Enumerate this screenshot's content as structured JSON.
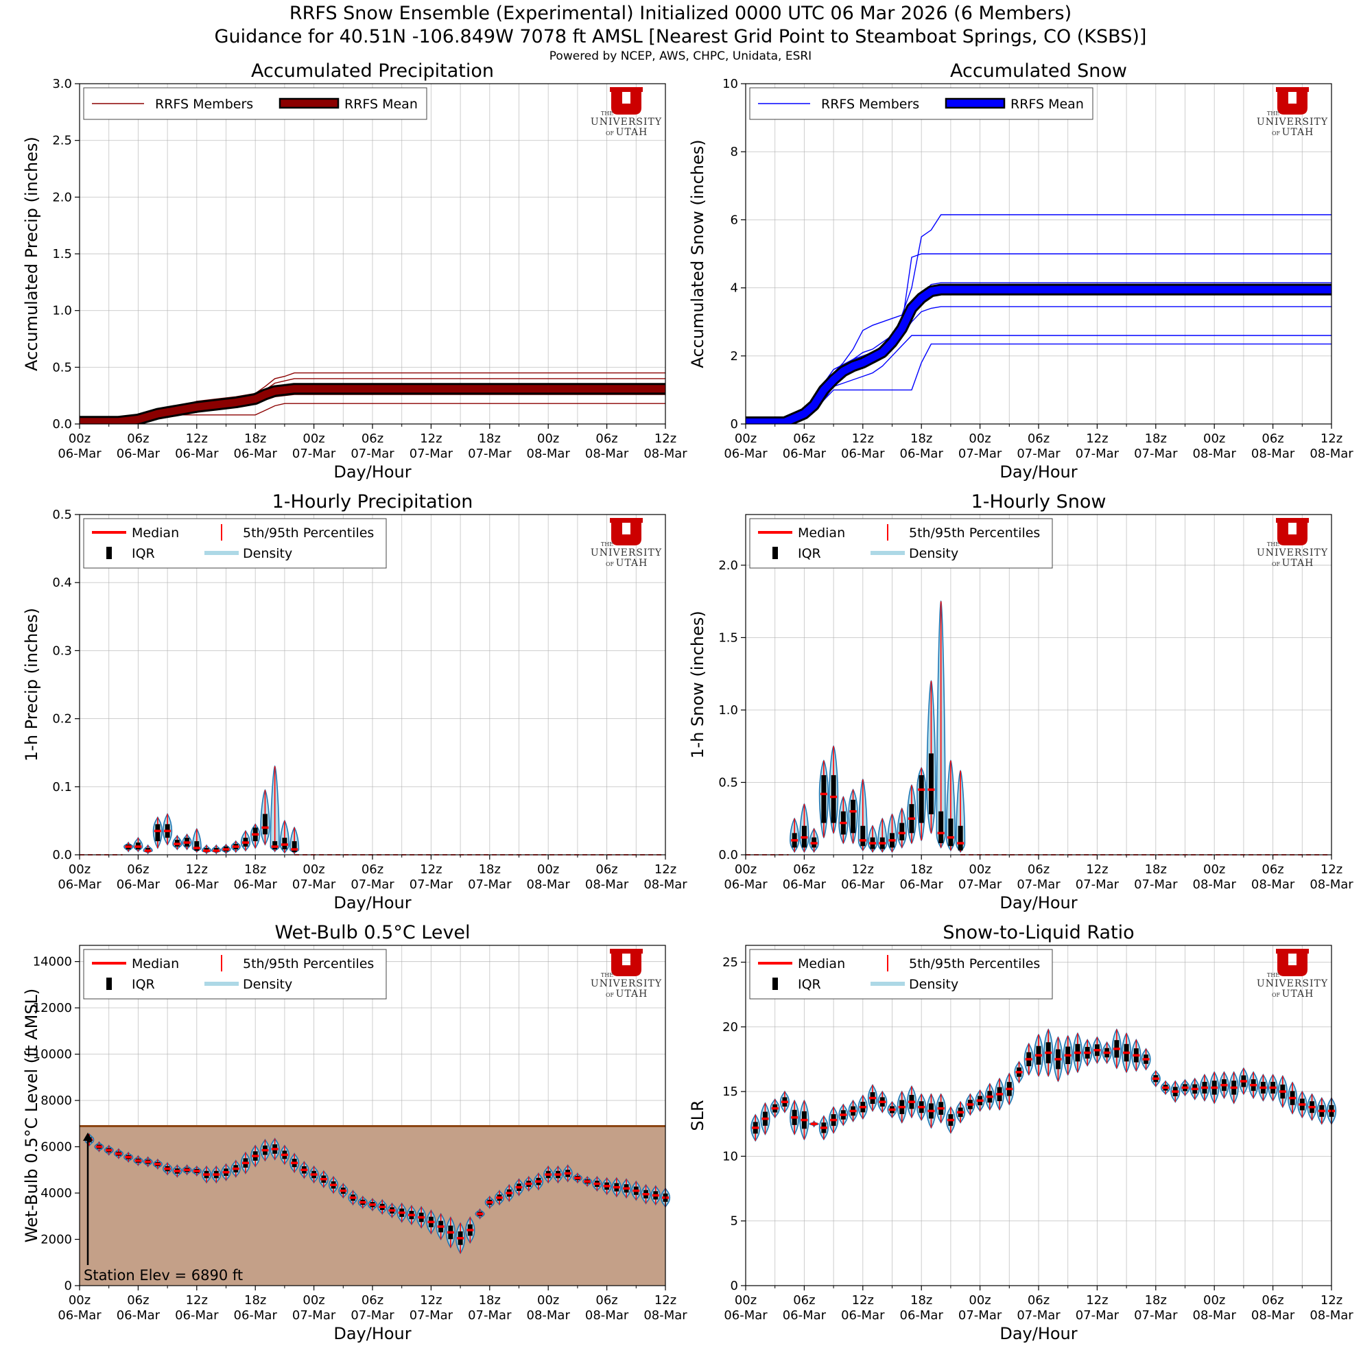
{
  "header": {
    "title_line1": "RRFS Snow Ensemble (Experimental) Initialized 0000 UTC 06 Mar 2026 (6 Members)",
    "title_line2": "Guidance for 40.51N -106.849W 7078 ft AMSL [Nearest Grid Point to Steamboat Springs, CO (KSBS)]",
    "credits": "Powered by NCEP, AWS, CHPC, Unidata, ESRI"
  },
  "logo": {
    "the": "THE",
    "line1": "UNIVERSITY",
    "of": "OF",
    "line2": "UTAH"
  },
  "x_axis": {
    "label": "Day/Hour",
    "range_hours": [
      0,
      60
    ],
    "tick_hours": [
      0,
      6,
      12,
      18,
      24,
      30,
      36,
      42,
      48,
      54,
      60
    ],
    "tick_labels_top": [
      "00z",
      "06z",
      "12z",
      "18z",
      "00z",
      "06z",
      "12z",
      "18z",
      "00z",
      "06z",
      "12z"
    ],
    "tick_labels_bottom": [
      "06-Mar",
      "06-Mar",
      "06-Mar",
      "06-Mar",
      "07-Mar",
      "07-Mar",
      "07-Mar",
      "07-Mar",
      "08-Mar",
      "08-Mar",
      "08-Mar"
    ]
  },
  "colors": {
    "precip_member": "#8b0000",
    "precip_mean": "#8b0000",
    "snow_member": "#0000ff",
    "snow_mean": "#0000ff",
    "median": "#ff0000",
    "percentile": "#ff0000",
    "iqr": "#000000",
    "density_fill": "#add8e6",
    "density_edge": "#1f77b4",
    "ground": "#c4a088",
    "ground_line": "#8b4513",
    "grid": "#b0b0b0"
  },
  "legends": {
    "members_precip": "RRFS Members",
    "mean_precip": "RRFS Mean",
    "members_snow": "RRFS Members",
    "mean_snow": "RRFS Mean",
    "median": "Median",
    "percentiles": "5th/95th Percentiles",
    "iqr": "IQR",
    "density": "Density"
  },
  "chart_data": [
    {
      "id": "accum_precip",
      "type": "line",
      "title": "Accumulated Precipitation",
      "xlabel": "Day/Hour",
      "ylabel": "Accumulated Precip (inches)",
      "ylim": [
        0,
        3.0
      ],
      "yticks": [
        0,
        0.5,
        1.0,
        1.5,
        2.0,
        2.5,
        3.0
      ],
      "ytick_labels": [
        "0.0",
        "0.5",
        "1.0",
        "1.5",
        "2.0",
        "2.5",
        "3.0"
      ],
      "x": [
        0,
        4,
        6,
        8,
        10,
        12,
        14,
        16,
        18,
        19,
        20,
        21,
        22,
        60
      ],
      "members": [
        [
          0.02,
          0.02,
          0.04,
          0.1,
          0.15,
          0.2,
          0.22,
          0.24,
          0.27,
          0.33,
          0.4,
          0.42,
          0.45,
          0.45
        ],
        [
          0.02,
          0.02,
          0.04,
          0.09,
          0.13,
          0.17,
          0.2,
          0.22,
          0.25,
          0.3,
          0.36,
          0.38,
          0.4,
          0.4
        ],
        [
          0.02,
          0.02,
          0.04,
          0.09,
          0.12,
          0.16,
          0.18,
          0.2,
          0.23,
          0.27,
          0.31,
          0.32,
          0.34,
          0.34
        ],
        [
          0.02,
          0.02,
          0.03,
          0.08,
          0.11,
          0.14,
          0.16,
          0.18,
          0.21,
          0.24,
          0.27,
          0.28,
          0.29,
          0.29
        ],
        [
          0.02,
          0.02,
          0.03,
          0.07,
          0.1,
          0.12,
          0.14,
          0.16,
          0.18,
          0.21,
          0.24,
          0.25,
          0.26,
          0.26
        ],
        [
          0.0,
          0.0,
          0.02,
          0.06,
          0.08,
          0.08,
          0.08,
          0.08,
          0.08,
          0.12,
          0.16,
          0.18,
          0.18,
          0.18
        ]
      ],
      "mean": [
        0.02,
        0.02,
        0.04,
        0.09,
        0.12,
        0.15,
        0.17,
        0.19,
        0.22,
        0.26,
        0.29,
        0.3,
        0.31,
        0.31
      ]
    },
    {
      "id": "accum_snow",
      "type": "line",
      "title": "Accumulated Snow",
      "xlabel": "Day/Hour",
      "ylabel": "Accumulated Snow (inches)",
      "ylim": [
        0,
        10
      ],
      "yticks": [
        0,
        2,
        4,
        6,
        8,
        10
      ],
      "ytick_labels": [
        "0",
        "2",
        "4",
        "6",
        "8",
        "10"
      ],
      "x": [
        0,
        4,
        6,
        7,
        8,
        9,
        10,
        11,
        12,
        13,
        14,
        15,
        16,
        17,
        18,
        19,
        20,
        21,
        22,
        60
      ],
      "members": [
        [
          0.05,
          0.05,
          0.35,
          0.6,
          1.0,
          1.5,
          1.8,
          2.2,
          2.75,
          2.9,
          3.0,
          3.1,
          3.2,
          4.0,
          5.5,
          5.7,
          6.15,
          6.15,
          6.15,
          6.15
        ],
        [
          0.05,
          0.05,
          0.3,
          0.5,
          0.9,
          1.4,
          1.7,
          1.9,
          2.1,
          2.2,
          2.4,
          2.6,
          2.9,
          4.9,
          5.0,
          5.0,
          5.0,
          5.0,
          5.0,
          5.0
        ],
        [
          0.05,
          0.05,
          0.4,
          0.7,
          1.2,
          1.6,
          1.75,
          1.9,
          2.0,
          2.1,
          2.3,
          2.5,
          2.8,
          3.3,
          3.8,
          4.1,
          4.15,
          4.15,
          4.15,
          4.15
        ],
        [
          0.05,
          0.05,
          0.3,
          0.5,
          0.9,
          1.3,
          1.5,
          1.6,
          1.7,
          1.8,
          2.0,
          2.3,
          2.6,
          3.0,
          3.3,
          3.4,
          3.45,
          3.45,
          3.45,
          3.45
        ],
        [
          0.05,
          0.05,
          0.2,
          0.4,
          0.7,
          1.0,
          1.0,
          1.0,
          1.0,
          1.0,
          1.0,
          1.0,
          1.0,
          1.0,
          1.8,
          2.35,
          2.35,
          2.35,
          2.35,
          2.35
        ],
        [
          0.05,
          0.05,
          0.2,
          0.4,
          0.7,
          1.1,
          1.2,
          1.3,
          1.4,
          1.5,
          1.7,
          2.0,
          2.3,
          2.6,
          2.6,
          2.6,
          2.6,
          2.6,
          2.6,
          2.6
        ]
      ],
      "mean": [
        0.05,
        0.05,
        0.3,
        0.55,
        1.0,
        1.3,
        1.55,
        1.7,
        1.8,
        1.95,
        2.1,
        2.4,
        2.8,
        3.4,
        3.7,
        3.9,
        3.95,
        3.95,
        3.95,
        3.95
      ]
    },
    {
      "id": "hourly_precip",
      "type": "violin",
      "title": "1-Hourly Precipitation",
      "xlabel": "Day/Hour",
      "ylabel": "1-h Precip (inches)",
      "ylim": [
        0,
        0.5
      ],
      "yticks": [
        0,
        0.1,
        0.2,
        0.3,
        0.4,
        0.5
      ],
      "ytick_labels": [
        "0.0",
        "0.1",
        "0.2",
        "0.3",
        "0.4",
        "0.5"
      ],
      "dashed_zero_from": 22,
      "hours": [
        5,
        6,
        7,
        8,
        9,
        10,
        11,
        12,
        13,
        14,
        15,
        16,
        17,
        18,
        19,
        20,
        21,
        22
      ],
      "p5": [
        0.005,
        0.005,
        0.002,
        0.01,
        0.015,
        0.008,
        0.008,
        0.004,
        0.002,
        0.002,
        0.002,
        0.004,
        0.006,
        0.01,
        0.015,
        0.005,
        0.003,
        0.002
      ],
      "q1": [
        0.008,
        0.008,
        0.004,
        0.02,
        0.025,
        0.012,
        0.012,
        0.006,
        0.004,
        0.004,
        0.005,
        0.008,
        0.012,
        0.02,
        0.03,
        0.008,
        0.008,
        0.004
      ],
      "median": [
        0.012,
        0.012,
        0.006,
        0.035,
        0.035,
        0.016,
        0.018,
        0.01,
        0.006,
        0.006,
        0.008,
        0.012,
        0.018,
        0.03,
        0.04,
        0.012,
        0.015,
        0.008
      ],
      "q3": [
        0.015,
        0.018,
        0.01,
        0.045,
        0.045,
        0.022,
        0.025,
        0.02,
        0.01,
        0.01,
        0.012,
        0.016,
        0.025,
        0.04,
        0.06,
        0.02,
        0.025,
        0.02
      ],
      "p95": [
        0.018,
        0.025,
        0.014,
        0.055,
        0.06,
        0.028,
        0.03,
        0.038,
        0.014,
        0.014,
        0.015,
        0.02,
        0.035,
        0.045,
        0.095,
        0.13,
        0.05,
        0.04
      ]
    },
    {
      "id": "hourly_snow",
      "type": "violin",
      "title": "1-Hourly Snow",
      "xlabel": "Day/Hour",
      "ylabel": "1-h Snow (inches)",
      "ylim": [
        0,
        2.35
      ],
      "yticks": [
        0,
        0.5,
        1.0,
        1.5,
        2.0
      ],
      "ytick_labels": [
        "0.0",
        "0.5",
        "1.0",
        "1.5",
        "2.0"
      ],
      "dashed_zero_from": 22,
      "hours": [
        5,
        6,
        7,
        8,
        9,
        10,
        11,
        12,
        13,
        14,
        15,
        16,
        17,
        18,
        19,
        20,
        21,
        22
      ],
      "p5": [
        0.02,
        0.02,
        0.02,
        0.12,
        0.15,
        0.08,
        0.08,
        0.03,
        0.02,
        0.02,
        0.02,
        0.05,
        0.08,
        0.1,
        0.15,
        0.05,
        0.03,
        0.02
      ],
      "q1": [
        0.05,
        0.05,
        0.05,
        0.22,
        0.22,
        0.14,
        0.15,
        0.06,
        0.04,
        0.04,
        0.05,
        0.1,
        0.15,
        0.22,
        0.28,
        0.08,
        0.06,
        0.03
      ],
      "median": [
        0.1,
        0.12,
        0.08,
        0.42,
        0.4,
        0.22,
        0.3,
        0.1,
        0.08,
        0.08,
        0.1,
        0.15,
        0.25,
        0.45,
        0.45,
        0.15,
        0.12,
        0.08
      ],
      "q3": [
        0.15,
        0.2,
        0.12,
        0.55,
        0.55,
        0.3,
        0.38,
        0.2,
        0.12,
        0.12,
        0.15,
        0.22,
        0.35,
        0.55,
        0.7,
        0.3,
        0.25,
        0.2
      ],
      "p95": [
        0.25,
        0.35,
        0.18,
        0.65,
        0.75,
        0.4,
        0.45,
        0.52,
        0.2,
        0.25,
        0.28,
        0.32,
        0.48,
        0.6,
        1.2,
        1.75,
        0.65,
        0.58
      ]
    },
    {
      "id": "wetbulb_level",
      "type": "violin",
      "title": "Wet-Bulb 0.5°C Level",
      "xlabel": "Day/Hour",
      "ylabel": "Wet-Bulb 0.5°C Level (ft AMSL)",
      "ylim": [
        0,
        14700
      ],
      "yticks": [
        0,
        2000,
        4000,
        6000,
        8000,
        10000,
        12000,
        14000
      ],
      "ytick_labels": [
        "0",
        "2000",
        "4000",
        "6000",
        "8000",
        "10000",
        "12000",
        "14000"
      ],
      "station_elev_ft": 6890,
      "station_label": "Station Elev = 6890 ft",
      "hours": [
        1,
        2,
        3,
        4,
        5,
        6,
        7,
        8,
        9,
        10,
        11,
        12,
        13,
        14,
        15,
        16,
        17,
        18,
        19,
        20,
        21,
        22,
        23,
        24,
        25,
        26,
        27,
        28,
        29,
        30,
        31,
        32,
        33,
        34,
        35,
        36,
        37,
        38,
        39,
        40,
        41,
        42,
        43,
        44,
        45,
        46,
        47,
        48,
        49,
        50,
        51,
        52,
        53,
        54,
        55,
        56,
        57,
        58,
        59,
        60
      ],
      "median": [
        6300,
        6000,
        5850,
        5700,
        5550,
        5400,
        5350,
        5250,
        5050,
        4950,
        5000,
        4950,
        4800,
        4800,
        4900,
        5050,
        5300,
        5600,
        5850,
        5900,
        5650,
        5300,
        5000,
        4800,
        4600,
        4350,
        4100,
        3800,
        3600,
        3500,
        3400,
        3250,
        3150,
        3050,
        2950,
        2750,
        2550,
        2300,
        2050,
        2400,
        3100,
        3600,
        3800,
        4000,
        4250,
        4400,
        4500,
        4800,
        4800,
        4850,
        4650,
        4500,
        4400,
        4300,
        4250,
        4200,
        4100,
        3950,
        3900,
        3800
      ],
      "spread": [
        250,
        200,
        200,
        200,
        200,
        200,
        200,
        200,
        250,
        250,
        200,
        200,
        350,
        350,
        350,
        350,
        450,
        450,
        450,
        450,
        400,
        400,
        350,
        350,
        350,
        350,
        300,
        300,
        250,
        250,
        300,
        300,
        400,
        400,
        450,
        500,
        550,
        650,
        650,
        550,
        200,
        250,
        300,
        350,
        350,
        300,
        350,
        350,
        350,
        350,
        200,
        200,
        300,
        350,
        400,
        400,
        400,
        400,
        400,
        400
      ]
    },
    {
      "id": "slr",
      "type": "violin",
      "title": "Snow-to-Liquid Ratio",
      "xlabel": "Day/Hour",
      "ylabel": "SLR",
      "ylim": [
        0,
        26.3
      ],
      "yticks": [
        0,
        5,
        10,
        15,
        20,
        25
      ],
      "ytick_labels": [
        "0",
        "5",
        "10",
        "15",
        "20",
        "25"
      ],
      "hours": [
        1,
        2,
        3,
        4,
        5,
        6,
        7,
        8,
        9,
        10,
        11,
        12,
        13,
        14,
        15,
        16,
        17,
        18,
        19,
        20,
        21,
        22,
        23,
        24,
        25,
        26,
        27,
        28,
        29,
        30,
        31,
        32,
        33,
        34,
        35,
        36,
        37,
        38,
        39,
        40,
        41,
        42,
        43,
        44,
        45,
        46,
        47,
        48,
        49,
        50,
        51,
        52,
        53,
        54,
        55,
        56,
        57,
        58,
        59,
        60
      ],
      "median": [
        12.2,
        12.9,
        13.7,
        14.2,
        13.0,
        12.8,
        12.5,
        12.2,
        12.8,
        13.2,
        13.5,
        13.8,
        14.5,
        14.2,
        13.6,
        13.8,
        14.2,
        13.8,
        13.5,
        13.7,
        12.8,
        13.4,
        14.0,
        14.3,
        14.6,
        14.8,
        15.2,
        16.5,
        17.5,
        17.8,
        18.0,
        17.5,
        17.8,
        18.0,
        18.0,
        18.2,
        18.0,
        18.3,
        18.0,
        17.8,
        17.5,
        16.0,
        15.3,
        15.0,
        15.3,
        15.2,
        15.3,
        15.3,
        15.5,
        15.3,
        15.8,
        15.5,
        15.3,
        15.3,
        15.0,
        14.5,
        14.0,
        13.8,
        13.5,
        13.5
      ],
      "spread": [
        1.0,
        1.2,
        0.7,
        0.8,
        1.3,
        1.5,
        0.2,
        0.9,
        1.0,
        0.8,
        0.8,
        0.9,
        1.0,
        0.8,
        0.6,
        1.2,
        1.2,
        1.0,
        1.3,
        1.1,
        1.0,
        0.8,
        0.8,
        0.8,
        1.0,
        1.2,
        1.2,
        0.8,
        1.2,
        1.6,
        1.8,
        1.7,
        1.5,
        1.5,
        1.0,
        1.0,
        0.8,
        1.5,
        1.5,
        1.2,
        0.8,
        0.6,
        0.5,
        0.8,
        0.6,
        0.8,
        1.0,
        1.2,
        1.0,
        1.2,
        1.0,
        1.0,
        1.0,
        1.0,
        1.2,
        1.2,
        1.0,
        1.0,
        1.0,
        1.0
      ]
    }
  ]
}
